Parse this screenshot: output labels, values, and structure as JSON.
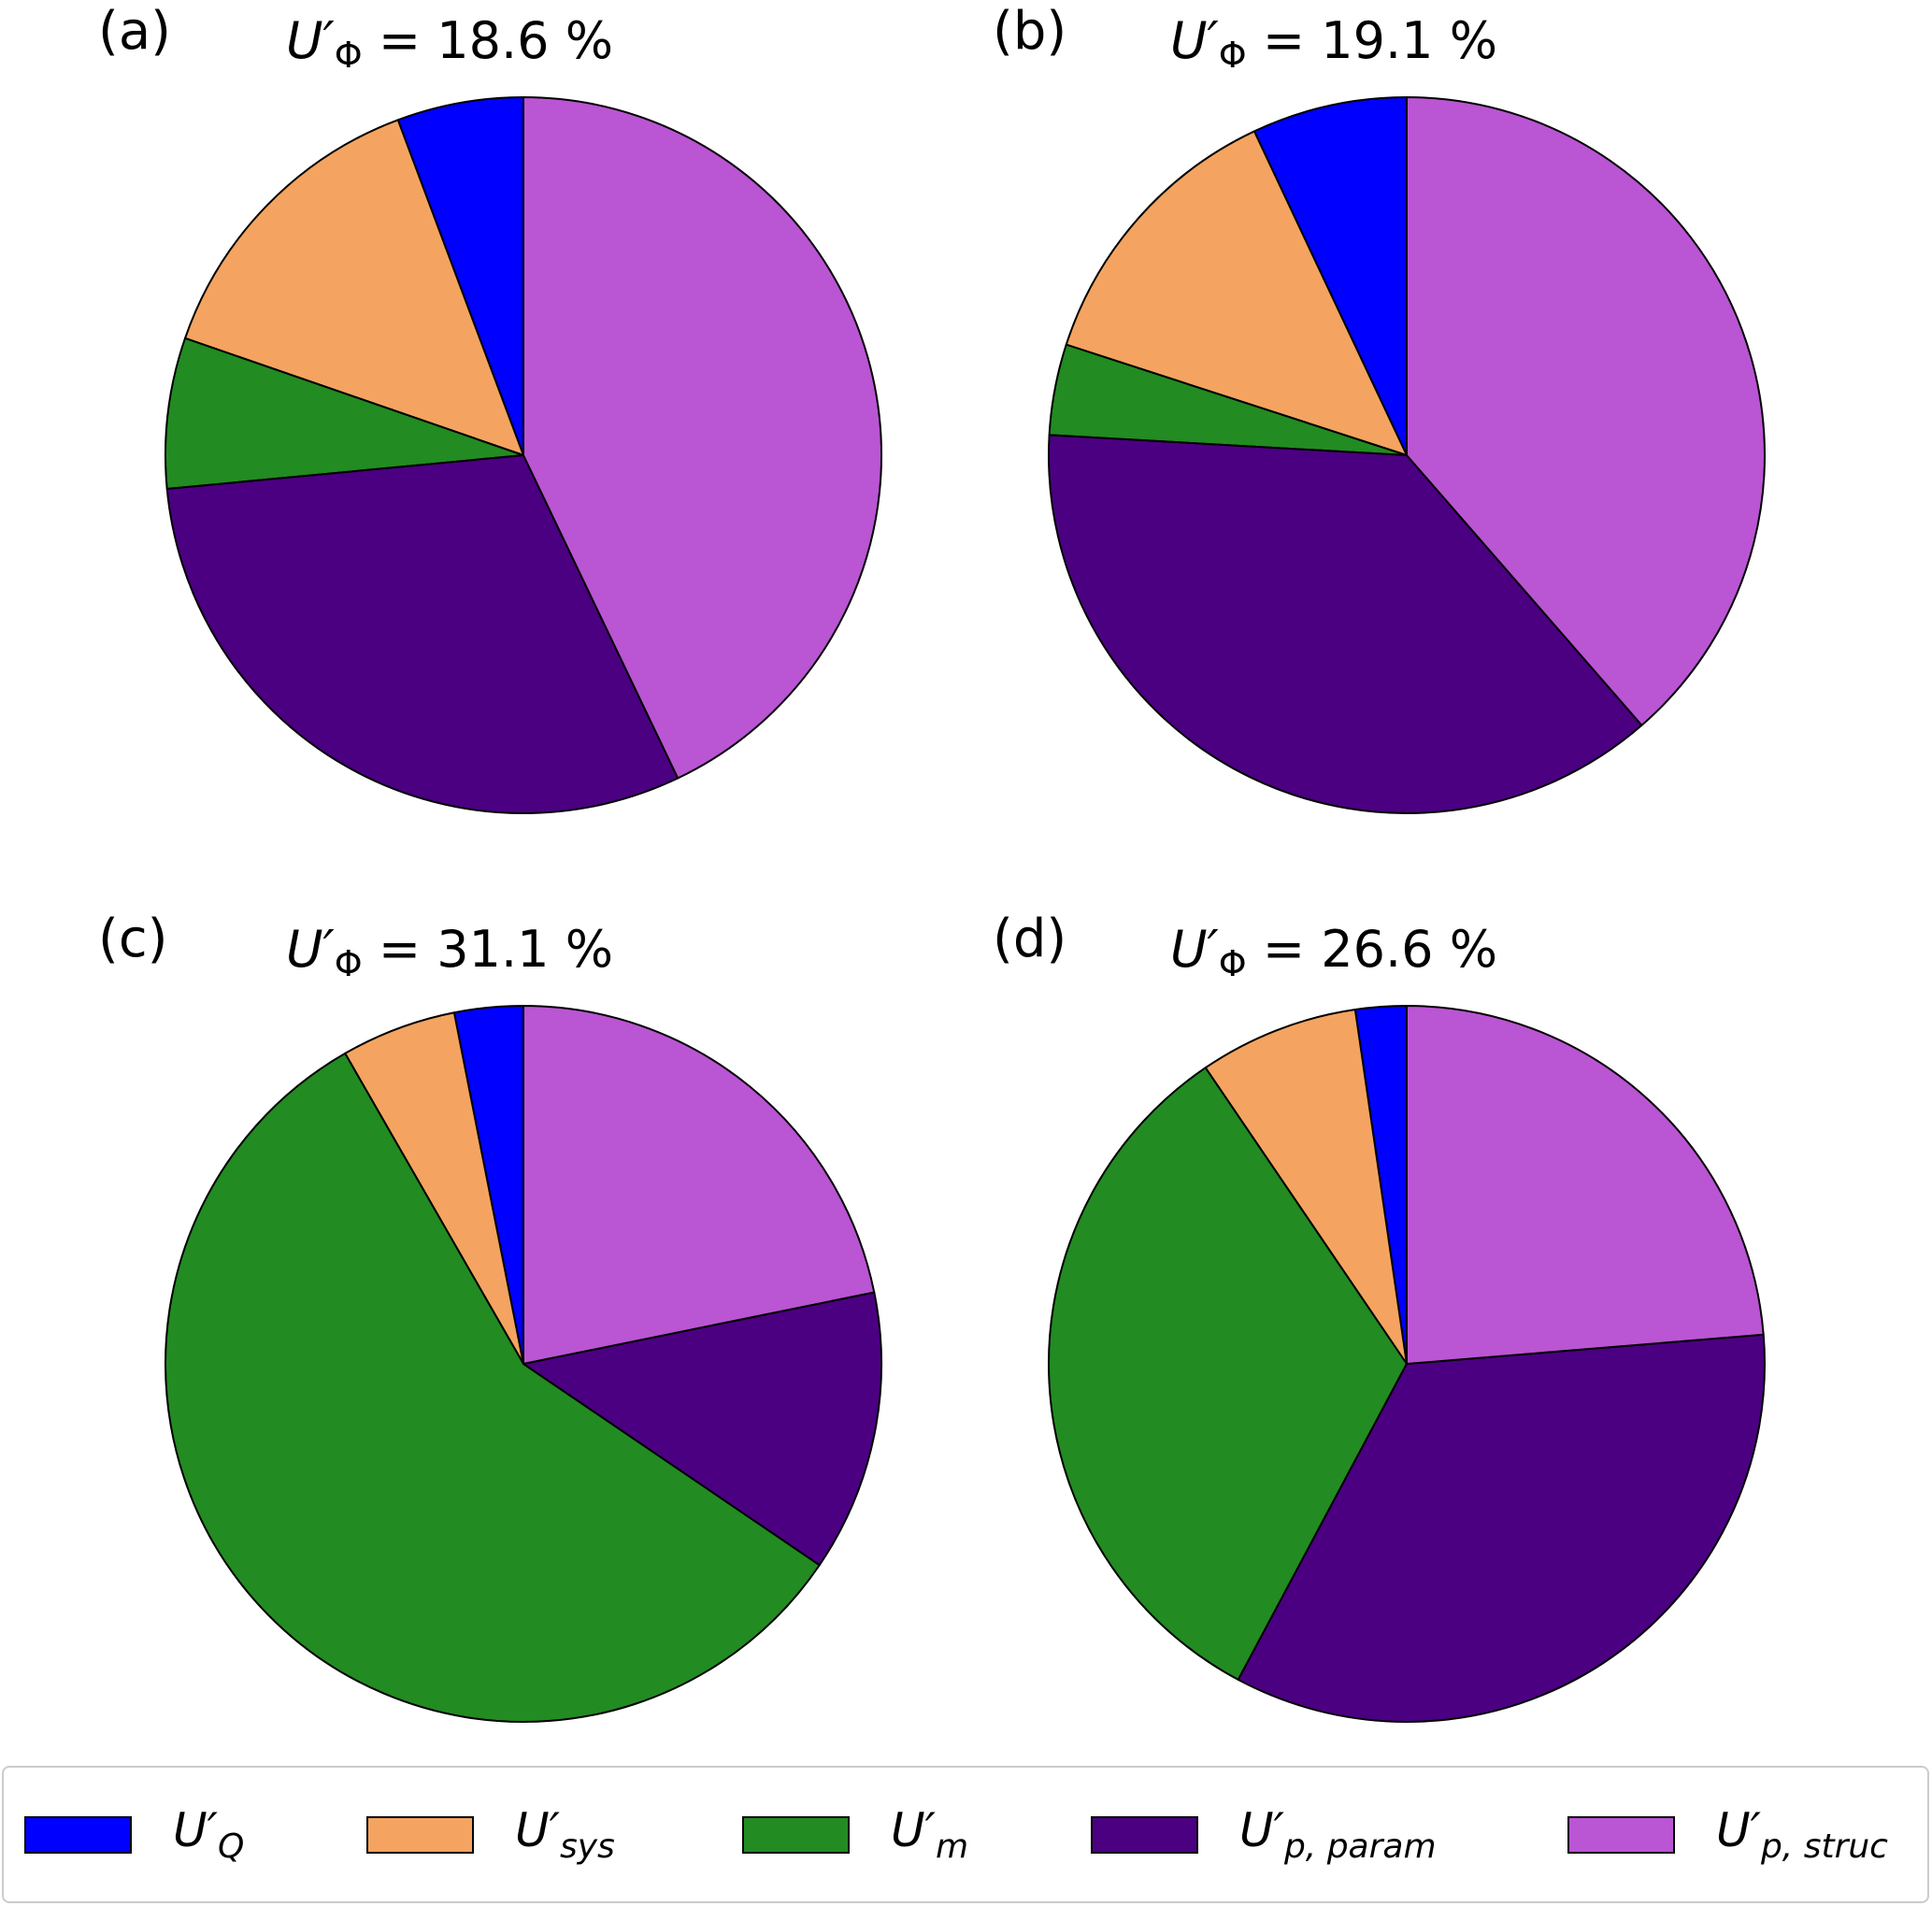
{
  "chart_data": [
    {
      "type": "pie",
      "panel_label": "(a)",
      "title_symbol": "U′",
      "title_subscript": "Φ",
      "title_value": " = 18.6 %",
      "categories": [
        "U′Q",
        "U′sys",
        "U′m",
        "U′p, param",
        "U′p, struc"
      ],
      "values": [
        5.7,
        14.0,
        6.8,
        30.6,
        42.9
      ]
    },
    {
      "type": "pie",
      "panel_label": "(b)",
      "title_symbol": "U′",
      "title_subscript": "Φ",
      "title_value": " = 19.1 %",
      "categories": [
        "U′Q",
        "U′sys",
        "U′m",
        "U′p, param",
        "U′p, struc"
      ],
      "values": [
        7.0,
        13.0,
        4.1,
        37.3,
        38.6
      ]
    },
    {
      "type": "pie",
      "panel_label": "(c)",
      "title_symbol": "U′",
      "title_subscript": "Φ",
      "title_value": " = 31.1 %",
      "categories": [
        "U′Q",
        "U′sys",
        "U′m",
        "U′p, param",
        "U′p, struc"
      ],
      "values": [
        3.1,
        5.2,
        57.2,
        12.7,
        21.8
      ]
    },
    {
      "type": "pie",
      "panel_label": "(d)",
      "title_symbol": "U′",
      "title_subscript": "Φ",
      "title_value": " = 26.6 %",
      "categories": [
        "U′Q",
        "U′sys",
        "U′m",
        "U′p, param",
        "U′p, struc"
      ],
      "values": [
        2.3,
        7.2,
        32.7,
        34.1,
        23.7
      ]
    }
  ],
  "colors": [
    "#0000ff",
    "#f4a460",
    "#228b22",
    "#4b0082",
    "#ba55d3"
  ],
  "legend": [
    {
      "sym": "U′",
      "sub": "Q",
      "color": "#0000ff"
    },
    {
      "sym": "U′",
      "sub": "sys",
      "color": "#f4a460"
    },
    {
      "sym": "U′",
      "sub": "m",
      "color": "#228b22"
    },
    {
      "sym": "U′",
      "sub": "p, param",
      "color": "#4b0082"
    },
    {
      "sym": "U′",
      "sub": "p, struc",
      "color": "#ba55d3"
    }
  ]
}
